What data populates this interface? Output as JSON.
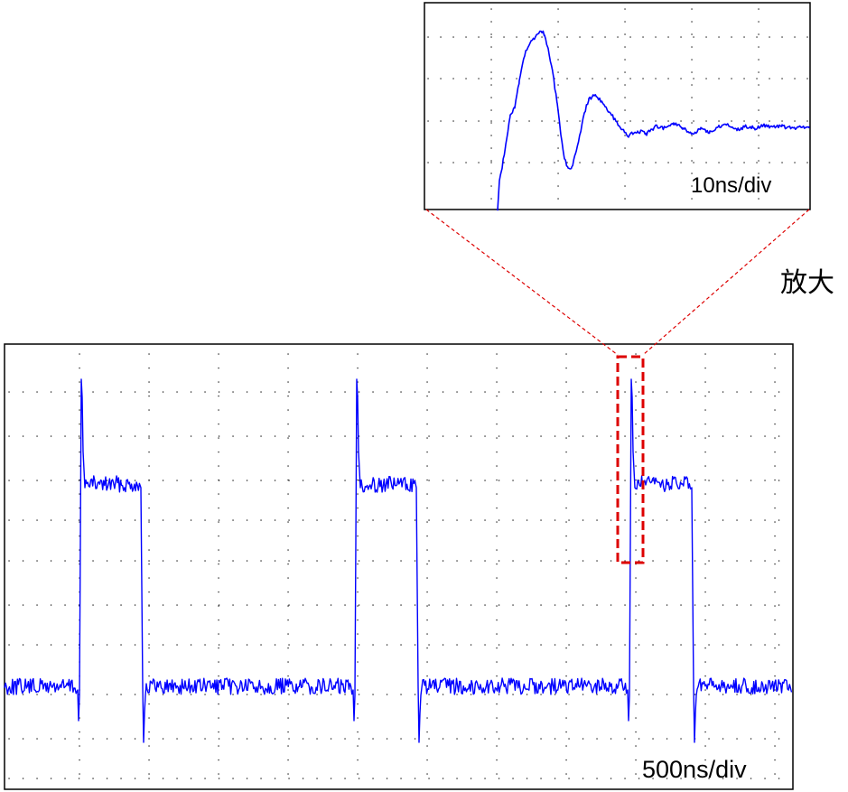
{
  "main_scope": {
    "time_scale_label": "500ns/div"
  },
  "zoom_scope": {
    "time_scale_label": "10ns/div"
  },
  "zoom_annotation": {
    "label": "放大"
  },
  "colors": {
    "trace": "#0000ff",
    "zoom_marker": "#dd0000",
    "frame": "#000000"
  }
}
